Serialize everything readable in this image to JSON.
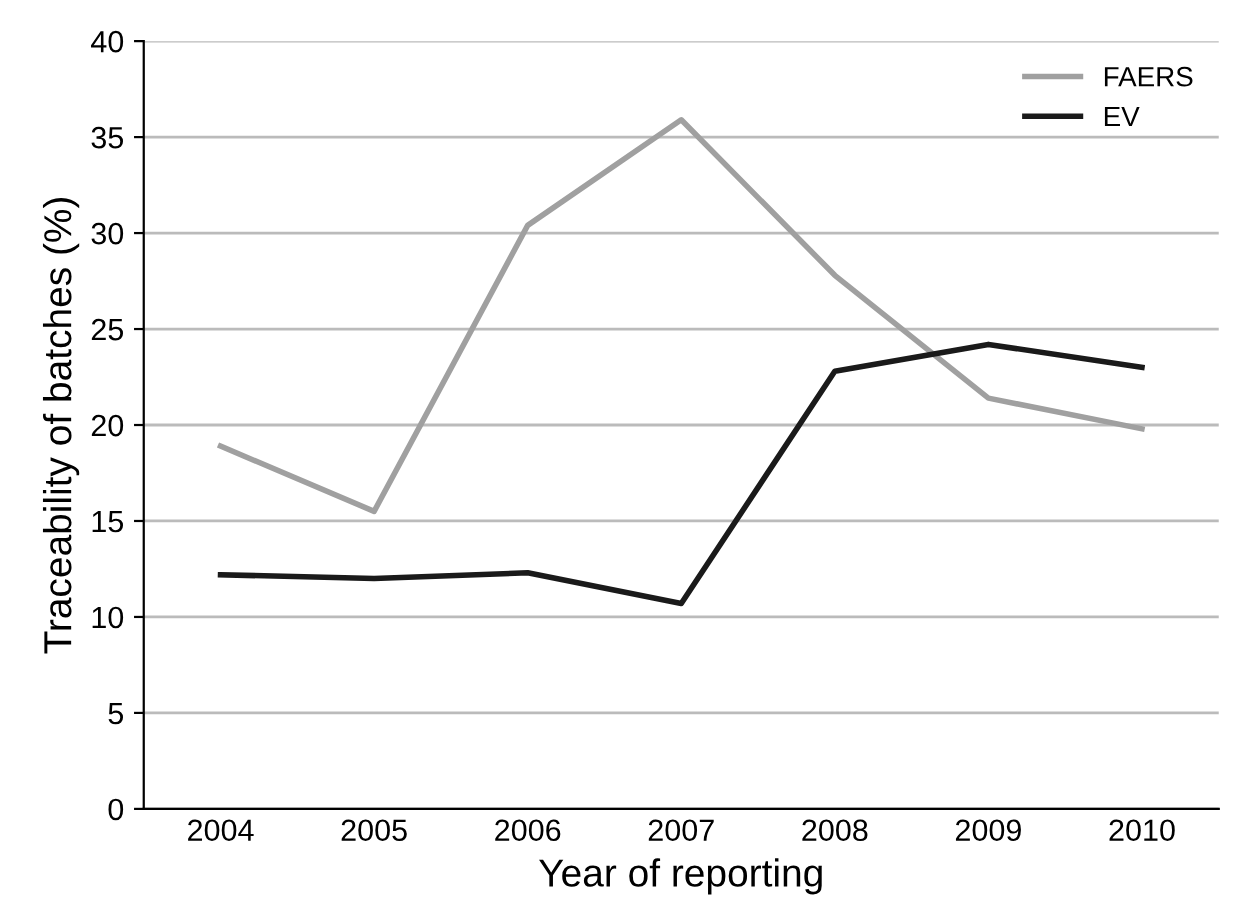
{
  "chart_data": {
    "type": "line",
    "xlabel": "Year of reporting",
    "ylabel": "Traceability of batches (%)",
    "categories": [
      "2004",
      "2005",
      "2006",
      "2007",
      "2008",
      "2009",
      "2010"
    ],
    "series": [
      {
        "name": "FAERS",
        "color": "#a0a0a0",
        "values": [
          18.9,
          15.5,
          30.4,
          35.9,
          27.8,
          21.4,
          19.8
        ]
      },
      {
        "name": "EV",
        "color": "#1a1a1a",
        "values": [
          12.2,
          12.0,
          12.3,
          10.7,
          22.8,
          24.2,
          23.0
        ]
      }
    ],
    "ylim": [
      0,
      40
    ],
    "yticks": [
      0,
      5,
      10,
      15,
      20,
      25,
      30,
      35,
      40
    ],
    "grid": "y",
    "legend": "top right",
    "marker": "none",
    "line_style": "solid"
  }
}
